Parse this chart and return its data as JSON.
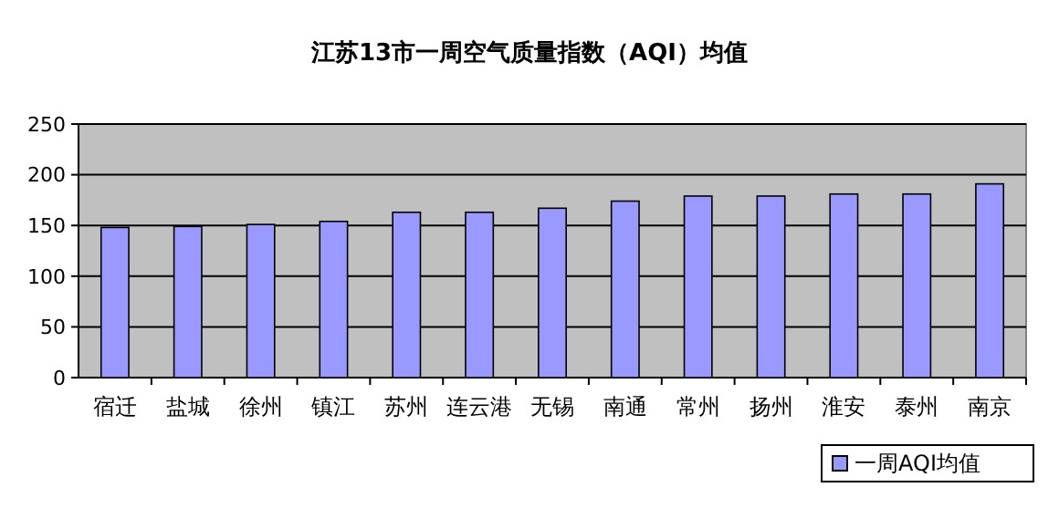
{
  "chart_data": {
    "type": "bar",
    "title": "江苏13市一周空气质量指数（AQI）均值",
    "categories": [
      "宿迁",
      "盐城",
      "徐州",
      "镇江",
      "苏州",
      "连云港",
      "无锡",
      "南通",
      "常州",
      "扬州",
      "淮安",
      "泰州",
      "南京"
    ],
    "series": [
      {
        "name": "一周AQI均值",
        "color": "#9999ff",
        "values": [
          148,
          149,
          151,
          154,
          163,
          163,
          167,
          174,
          179,
          179,
          181,
          181,
          191
        ]
      }
    ],
    "ylim": [
      0,
      250
    ],
    "yticks": [
      0,
      50,
      100,
      150,
      200,
      250
    ],
    "grid": "y",
    "legend": "bottom right"
  }
}
